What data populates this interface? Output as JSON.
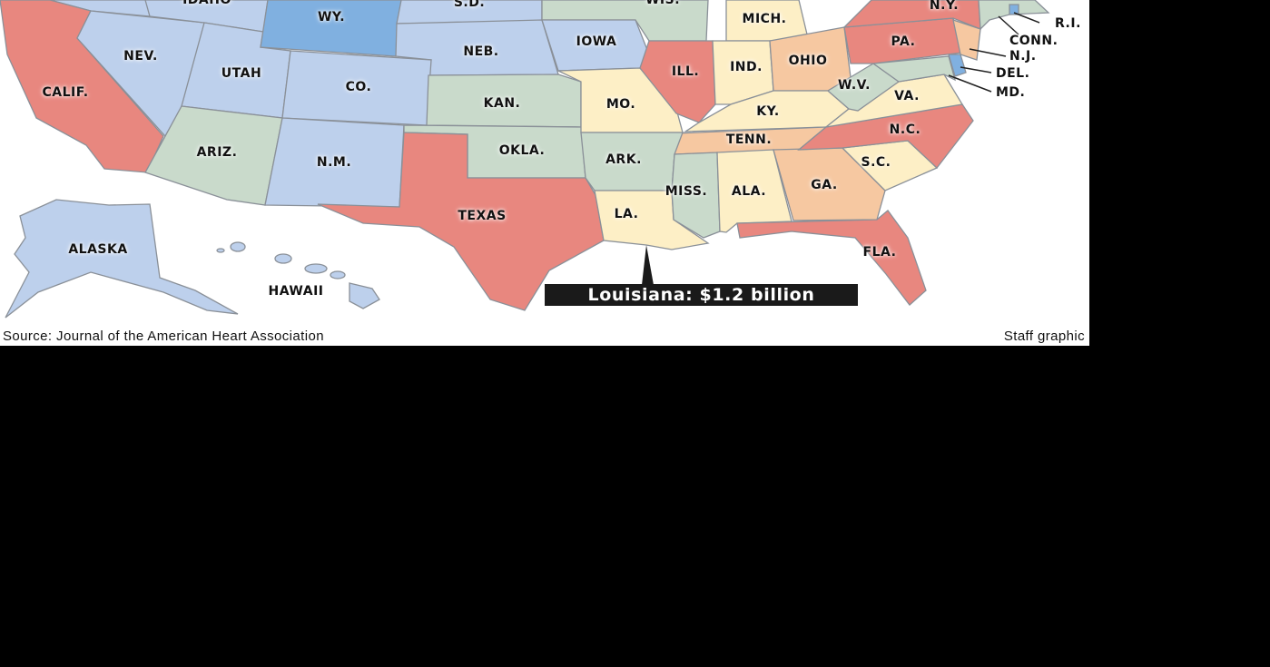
{
  "colors": {
    "red": "#e8877f",
    "lightblue": "#bdd0ec",
    "blue": "#80b0e0",
    "green": "#c9dacb",
    "yellow": "#fdefc6",
    "orange": "#f6c8a1"
  },
  "states": {
    "idaho": {
      "label": "IDAHO",
      "color": "lightblue"
    },
    "wy": {
      "label": "WY.",
      "color": "blue"
    },
    "sd": {
      "label": "S.D.",
      "color": "lightblue"
    },
    "wis": {
      "label": "WIS.",
      "color": "green"
    },
    "ny": {
      "label": "N.Y.",
      "color": "red"
    },
    "mich": {
      "label": "MICH.",
      "color": "yellow"
    },
    "ri": {
      "label": "R.I.",
      "color": "blue"
    },
    "conn": {
      "label": "CONN.",
      "color": "green"
    },
    "nj": {
      "label": "N.J.",
      "color": "orange"
    },
    "del": {
      "label": "DEL.",
      "color": "blue"
    },
    "md": {
      "label": "MD.",
      "color": "green"
    },
    "nev": {
      "label": "NEV.",
      "color": "lightblue"
    },
    "neb": {
      "label": "NEB.",
      "color": "lightblue"
    },
    "iowa": {
      "label": "IOWA",
      "color": "lightblue"
    },
    "pa": {
      "label": "PA.",
      "color": "red"
    },
    "utah": {
      "label": "UTAH",
      "color": "lightblue"
    },
    "ill": {
      "label": "ILL.",
      "color": "red"
    },
    "ind": {
      "label": "IND.",
      "color": "yellow"
    },
    "ohio": {
      "label": "OHIO",
      "color": "orange"
    },
    "co": {
      "label": "CO.",
      "color": "lightblue"
    },
    "calif": {
      "label": "CALIF.",
      "color": "red"
    },
    "wv": {
      "label": "W.V.",
      "color": "green"
    },
    "va": {
      "label": "VA.",
      "color": "yellow"
    },
    "kan": {
      "label": "KAN.",
      "color": "green"
    },
    "mo": {
      "label": "MO.",
      "color": "yellow"
    },
    "ky": {
      "label": "KY.",
      "color": "yellow"
    },
    "nc": {
      "label": "N.C.",
      "color": "red"
    },
    "tenn": {
      "label": "TENN.",
      "color": "orange"
    },
    "ariz": {
      "label": "ARIZ.",
      "color": "green"
    },
    "okla": {
      "label": "OKLA.",
      "color": "green"
    },
    "nm": {
      "label": "N.M.",
      "color": "lightblue"
    },
    "ark": {
      "label": "ARK.",
      "color": "green"
    },
    "sc": {
      "label": "S.C.",
      "color": "yellow"
    },
    "miss": {
      "label": "MISS.",
      "color": "green"
    },
    "ala": {
      "label": "ALA.",
      "color": "yellow"
    },
    "ga": {
      "label": "GA.",
      "color": "orange"
    },
    "texas": {
      "label": "TEXAS",
      "color": "red"
    },
    "la": {
      "label": "LA.",
      "color": "yellow"
    },
    "alaska": {
      "label": "ALASKA",
      "color": "lightblue"
    },
    "fla": {
      "label": "FLA.",
      "color": "red"
    },
    "hawaii": {
      "label": "HAWAII",
      "color": "lightblue"
    }
  },
  "callout": "Louisiana: $1.2 billion",
  "source": "Source: Journal of the American Heart Association",
  "credit": "Staff graphic"
}
